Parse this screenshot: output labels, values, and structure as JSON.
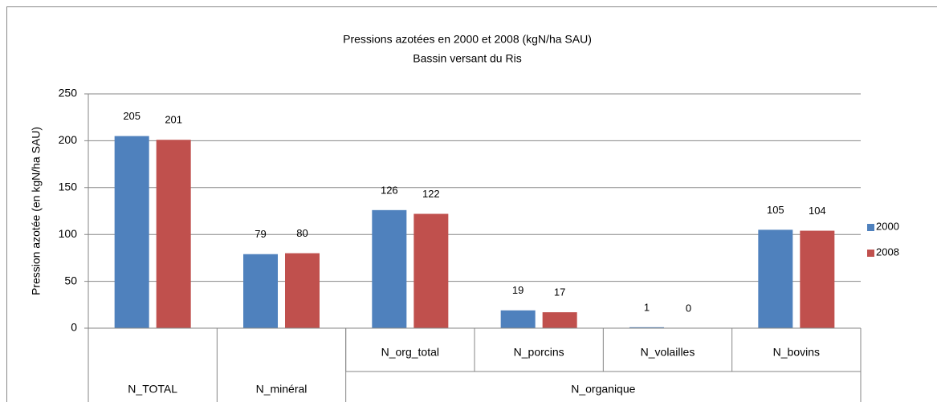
{
  "chart_data": {
    "type": "bar",
    "title": [
      "Pressions azotées en 2000 et 2008 (kgN/ha  SAU)",
      "Bassin versant du Ris"
    ],
    "y_label": "Pression azotée (en kgN/ha  SAU)",
    "categories": [
      null,
      null,
      "N_org_total",
      "N_porcins",
      "N_volailles",
      "N_bovins"
    ],
    "category_groups": [
      {
        "label": "N_TOTAL",
        "count": 1
      },
      {
        "label": "N_minéral",
        "count": 1
      },
      {
        "label": "N_organique",
        "count": 4
      }
    ],
    "series": [
      {
        "name": "2000",
        "color": "#4f81bd",
        "values": [
          205,
          79,
          126,
          19,
          1,
          105
        ]
      },
      {
        "name": "2008",
        "color": "#c0504d",
        "values": [
          201,
          80,
          122,
          17,
          0,
          104
        ]
      }
    ],
    "ylim": [
      0,
      250
    ],
    "yticks": [
      0,
      50,
      100,
      150,
      200,
      250
    ],
    "grid": true,
    "legend": "right"
  }
}
